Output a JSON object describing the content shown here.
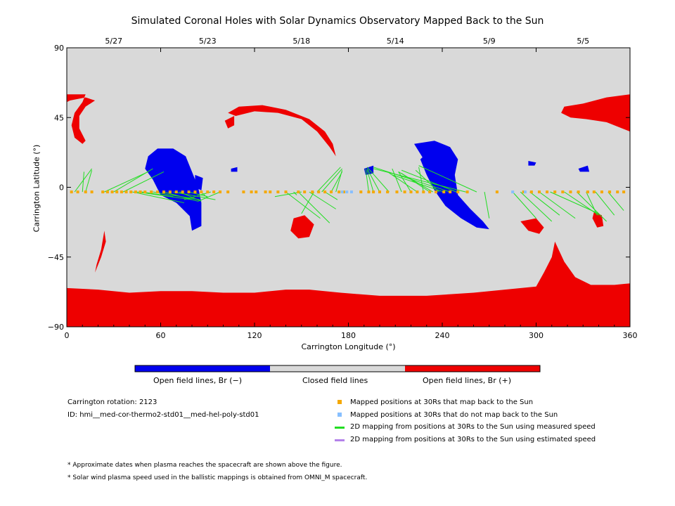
{
  "chart_data": {
    "type": "map",
    "title": "Simulated Coronal Holes with Solar Dynamics Observatory Mapped Back to the Sun",
    "xlabel": "Carrington Longitude (°)",
    "ylabel": "Carrington Latitude (°)",
    "xlim": [
      0,
      360
    ],
    "ylim": [
      -90,
      90
    ],
    "x_ticks": [
      0,
      60,
      120,
      180,
      240,
      300,
      360
    ],
    "y_ticks": [
      -90,
      -45,
      0,
      45,
      90
    ],
    "top_axis_dates": [
      {
        "label": "5/27",
        "lon": 30
      },
      {
        "label": "5/23",
        "lon": 90
      },
      {
        "label": "5/18",
        "lon": 150
      },
      {
        "label": "5/14",
        "lon": 210
      },
      {
        "label": "5/9",
        "lon": 270
      },
      {
        "label": "5/5",
        "lon": 330
      }
    ],
    "colors": {
      "open_negative": "#0000ee",
      "closed": "#d9d9d9",
      "open_positive": "#ee0000",
      "mapped_back": "#f5a800",
      "not_mapped": "#87bfff",
      "measured_speed": "#22dd22",
      "estimated_speed": "#b482ea"
    },
    "colorbar": [
      {
        "label": "Open field lines, Br (−)",
        "color": "#0000ee"
      },
      {
        "label": "Closed field lines",
        "color": "#d9d9d9"
      },
      {
        "label": "Open field lines, Br (+)",
        "color": "#ee0000"
      }
    ],
    "mapped_points": {
      "lat": -3,
      "lons_mapped": [
        3,
        7,
        12,
        16,
        23,
        26,
        29,
        32,
        35,
        38,
        41,
        44,
        47,
        50,
        54,
        58,
        62,
        66,
        70,
        74,
        78,
        82,
        86,
        90,
        94,
        98,
        103,
        113,
        118,
        121,
        127,
        130,
        135,
        140,
        148,
        152,
        157,
        161,
        165,
        169,
        174,
        177,
        188,
        193,
        196,
        200,
        205,
        211,
        216,
        220,
        224,
        228,
        232,
        236,
        241,
        245,
        250,
        256,
        275,
        292,
        297,
        302,
        307,
        312,
        317,
        322,
        327,
        333,
        337,
        342,
        347,
        352,
        356
      ],
      "lons_not_mapped": [
        176,
        179,
        182,
        285,
        293
      ]
    },
    "field_line_links": [
      [
        5,
        16
      ],
      [
        10,
        11
      ],
      [
        12,
        16
      ],
      [
        24,
        52
      ],
      [
        30,
        55
      ],
      [
        36,
        62
      ],
      [
        42,
        75
      ],
      [
        45,
        80
      ],
      [
        48,
        68
      ],
      [
        55,
        85
      ],
      [
        62,
        84
      ],
      [
        68,
        95
      ],
      [
        72,
        86
      ],
      [
        78,
        90
      ],
      [
        86,
        90
      ],
      [
        92,
        75
      ],
      [
        98,
        84
      ],
      [
        140,
        162
      ],
      [
        148,
        168
      ],
      [
        155,
        172
      ],
      [
        160,
        175
      ],
      [
        163,
        176
      ],
      [
        169,
        176
      ],
      [
        172,
        176
      ],
      [
        150,
        133
      ],
      [
        145,
        147
      ],
      [
        158,
        150
      ],
      [
        165,
        173
      ],
      [
        193,
        191
      ],
      [
        196,
        192
      ],
      [
        200,
        192
      ],
      [
        206,
        192
      ],
      [
        214,
        208
      ],
      [
        220,
        212
      ],
      [
        224,
        205
      ],
      [
        228,
        225
      ],
      [
        232,
        214
      ],
      [
        234,
        212
      ],
      [
        238,
        223
      ],
      [
        241,
        208
      ],
      [
        245,
        196
      ],
      [
        249,
        214
      ],
      [
        255,
        196
      ],
      [
        262,
        225
      ],
      [
        267,
        270
      ],
      [
        285,
        300
      ],
      [
        290,
        310
      ],
      [
        296,
        315
      ],
      [
        302,
        325
      ],
      [
        309,
        340
      ],
      [
        318,
        340
      ],
      [
        326,
        345
      ],
      [
        332,
        339
      ],
      [
        338,
        350
      ],
      [
        346,
        356
      ]
    ],
    "field_line_targets": [
      [
        16,
        12
      ],
      [
        11,
        10
      ],
      [
        16,
        11
      ],
      [
        52,
        10
      ],
      [
        55,
        12
      ],
      [
        62,
        10
      ],
      [
        75,
        -10
      ],
      [
        80,
        -8
      ],
      [
        68,
        -6
      ],
      [
        85,
        -8
      ],
      [
        84,
        -9
      ],
      [
        95,
        -8
      ],
      [
        86,
        -9
      ],
      [
        90,
        -6
      ],
      [
        90,
        -7
      ],
      [
        75,
        -8
      ],
      [
        84,
        -9
      ],
      [
        162,
        -20
      ],
      [
        168,
        -23
      ],
      [
        172,
        -14
      ],
      [
        175,
        13
      ],
      [
        176,
        12
      ],
      [
        176,
        10
      ],
      [
        176,
        11
      ],
      [
        133,
        -6
      ],
      [
        147,
        -5
      ],
      [
        150,
        -17
      ],
      [
        173,
        -8
      ],
      [
        191,
        12
      ],
      [
        192,
        11
      ],
      [
        192,
        12
      ],
      [
        192,
        13
      ],
      [
        208,
        12
      ],
      [
        212,
        10
      ],
      [
        205,
        10
      ],
      [
        225,
        13
      ],
      [
        214,
        9
      ],
      [
        212,
        10
      ],
      [
        223,
        11
      ],
      [
        208,
        8
      ],
      [
        196,
        13
      ],
      [
        214,
        11
      ],
      [
        196,
        12
      ],
      [
        225,
        14
      ],
      [
        270,
        -20
      ],
      [
        300,
        -20
      ],
      [
        310,
        -22
      ],
      [
        315,
        -18
      ],
      [
        325,
        -20
      ],
      [
        340,
        -17
      ],
      [
        340,
        -18
      ],
      [
        345,
        -22
      ],
      [
        339,
        -18
      ],
      [
        350,
        -18
      ],
      [
        356,
        -15
      ]
    ]
  },
  "colorbar_labels": {
    "neg": "Open field lines, Br (−)",
    "closed": "Closed field lines",
    "pos": "Open field lines, Br (+)"
  },
  "info": {
    "rotation": "Carrington rotation: 2123",
    "id": "ID: hmi__med-cor-thermo2-std01__med-hel-poly-std01"
  },
  "legend": {
    "mapped": "Mapped positions at 30Rs that map back to the Sun",
    "not_mapped": "Mapped positions at 30Rs that do not map back to the Sun",
    "measured": "2D mapping from positions at 30Rs to the Sun using measured speed",
    "estimated": "2D mapping from positions at 30Rs to the Sun using estimated speed"
  },
  "notes": {
    "note1": "* Approximate dates when plasma reaches the spacecraft are shown above the figure.",
    "note2": "* Solar wind plasma speed used in the ballistic mappings is obtained from OMNI_M spacecraft."
  }
}
